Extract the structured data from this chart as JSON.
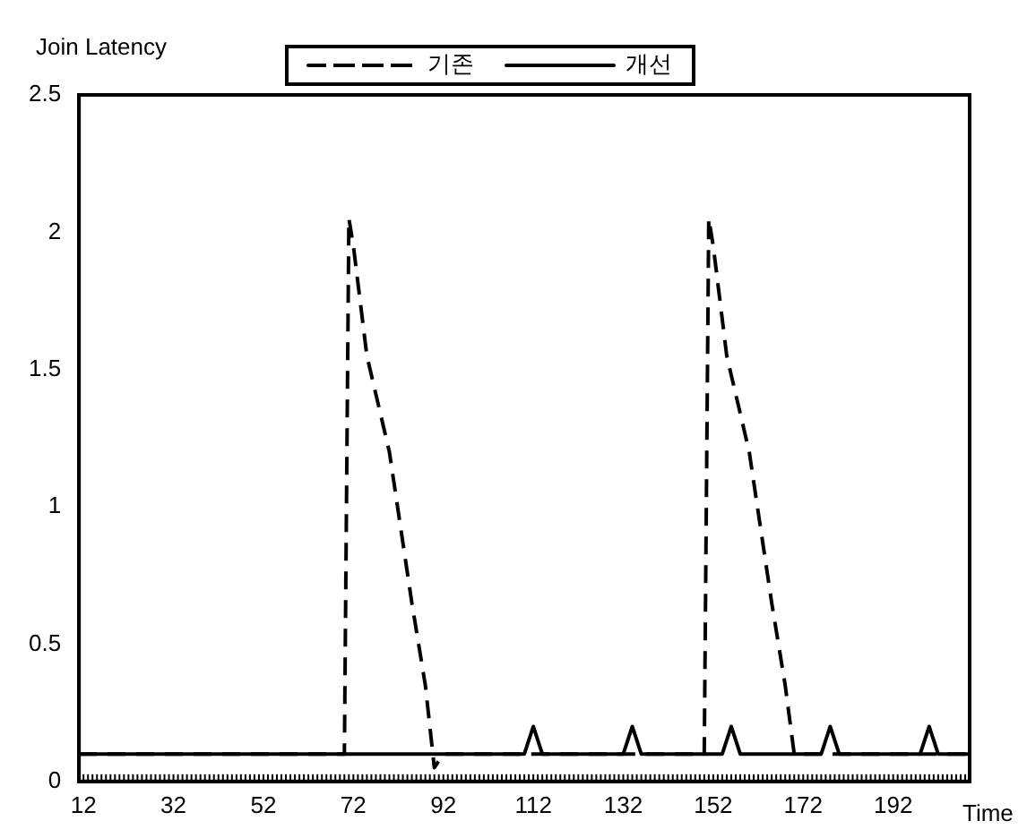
{
  "chart_data": {
    "type": "line",
    "xlabel": "Time",
    "ylabel": "Join Latency",
    "xlim": [
      11,
      209
    ],
    "xticks": [
      12,
      32,
      52,
      72,
      92,
      112,
      132,
      152,
      172,
      192
    ],
    "ylim": [
      0,
      2.5
    ],
    "yticks": [
      0,
      0.5,
      1,
      1.5,
      2,
      2.5
    ],
    "grid": false,
    "legend": "top",
    "marker": "none",
    "series": [
      {
        "name": "기존",
        "color": "#000000",
        "line_style": "dashed",
        "x": [
          11,
          70,
          71,
          72,
          75,
          80,
          85,
          88,
          90,
          92,
          150,
          151,
          152,
          155,
          160,
          165,
          168,
          170,
          172,
          209
        ],
        "values": [
          0.1,
          0.1,
          2.05,
          1.95,
          1.55,
          1.2,
          0.65,
          0.35,
          0.05,
          0.1,
          0.1,
          2.05,
          1.95,
          1.55,
          1.2,
          0.65,
          0.35,
          0.1,
          0.1,
          0.1
        ]
      },
      {
        "name": "개선",
        "color": "#000000",
        "line_style": "solid",
        "x": [
          11,
          110,
          112,
          114,
          132,
          134,
          136,
          154,
          156,
          158,
          176,
          178,
          180,
          198,
          200,
          202,
          209
        ],
        "values": [
          0.1,
          0.1,
          0.2,
          0.1,
          0.1,
          0.2,
          0.1,
          0.1,
          0.2,
          0.1,
          0.1,
          0.2,
          0.1,
          0.1,
          0.2,
          0.1,
          0.1
        ]
      }
    ]
  }
}
